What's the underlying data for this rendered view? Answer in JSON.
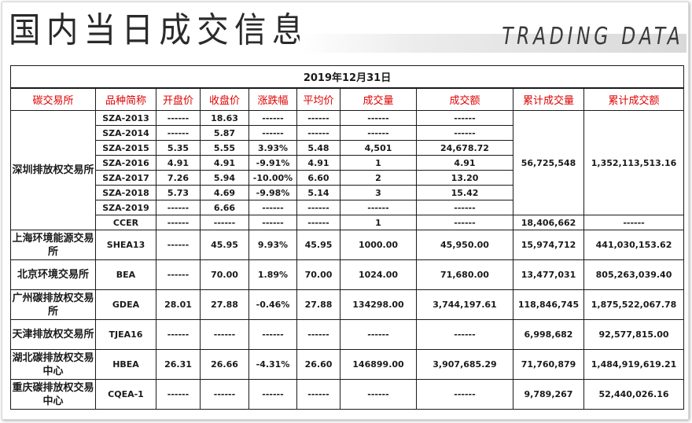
{
  "header": {
    "title_cn": "国内当日成交信息",
    "title_en": "TRADING DATA"
  },
  "table": {
    "date": "2019年12月31日",
    "columns": [
      "碳交易所",
      "品种简称",
      "开盘价",
      "收盘价",
      "涨跌幅",
      "平均价",
      "成交量",
      "成交额",
      "累计成交量",
      "累计成交额"
    ],
    "shenzhen": {
      "exchange": "深圳排放权交易所",
      "rows": [
        {
          "name": "SZA-2013",
          "open": "------",
          "close": "18.63",
          "change": "------",
          "avg": "------",
          "vol": "------",
          "amt": "------"
        },
        {
          "name": "SZA-2014",
          "open": "------",
          "close": "5.87",
          "change": "------",
          "avg": "------",
          "vol": "------",
          "amt": "------"
        },
        {
          "name": "SZA-2015",
          "open": "5.35",
          "close": "5.55",
          "change": "3.93%",
          "avg": "5.48",
          "vol": "4,501",
          "amt": "24,678.72"
        },
        {
          "name": "SZA-2016",
          "open": "4.91",
          "close": "4.91",
          "change": "-9.91%",
          "avg": "4.91",
          "vol": "1",
          "amt": "4.91"
        },
        {
          "name": "SZA-2017",
          "open": "7.26",
          "close": "5.94",
          "change": "-10.00%",
          "avg": "6.60",
          "vol": "2",
          "amt": "13.20"
        },
        {
          "name": "SZA-2018",
          "open": "5.73",
          "close": "4.69",
          "change": "-9.98%",
          "avg": "5.14",
          "vol": "3",
          "amt": "15.42"
        },
        {
          "name": "SZA-2019",
          "open": "------",
          "close": "6.66",
          "change": "------",
          "avg": "------",
          "vol": "------",
          "amt": "------"
        },
        {
          "name": "CCER",
          "open": "------",
          "close": "------",
          "change": "------",
          "avg": "------",
          "vol": "1",
          "amt": "------"
        }
      ],
      "cum_vol": "56,725,548",
      "cum_amt": "1,352,113,513.16",
      "ccer_cum_vol": "18,406,662",
      "ccer_cum_amt": "------"
    },
    "others": [
      {
        "exchange": "上海环境能源交易所",
        "name": "SHEA13",
        "open": "------",
        "close": "45.95",
        "change": "9.93%",
        "avg": "45.95",
        "vol": "1000.00",
        "amt": "45,950.00",
        "cum_vol": "15,974,712",
        "cum_amt": "441,030,153.62"
      },
      {
        "exchange": "北京环境交易所",
        "name": "BEA",
        "open": "------",
        "close": "70.00",
        "change": "1.89%",
        "avg": "70.00",
        "vol": "1024.00",
        "amt": "71,680.00",
        "cum_vol": "13,477,031",
        "cum_amt": "805,263,039.40"
      },
      {
        "exchange": "广州碳排放权交易所",
        "name": "GDEA",
        "open": "28.01",
        "close": "27.88",
        "change": "-0.46%",
        "avg": "27.88",
        "vol": "134298.00",
        "amt": "3,744,197.61",
        "cum_vol": "118,846,745",
        "cum_amt": "1,875,522,067.78"
      },
      {
        "exchange": "天津排放权交易所",
        "name": "TJEA16",
        "open": "------",
        "close": "------",
        "change": "------",
        "avg": "------",
        "vol": "------",
        "amt": "------",
        "cum_vol": "6,998,682",
        "cum_amt": "92,577,815.00"
      },
      {
        "exchange": "湖北碳排放权交易中心",
        "name": "HBEA",
        "open": "26.31",
        "close": "26.66",
        "change": "-4.31%",
        "avg": "26.60",
        "vol": "146899.00",
        "amt": "3,907,685.29",
        "cum_vol": "71,760,879",
        "cum_amt": "1,484,919,619.21"
      },
      {
        "exchange": "重庆碳排放权交易中心",
        "name": "CQEA-1",
        "open": "------",
        "close": "------",
        "change": "------",
        "avg": "------",
        "vol": "------",
        "amt": "------",
        "cum_vol": "9,789,267",
        "cum_amt": "52,440,026.16"
      }
    ]
  }
}
